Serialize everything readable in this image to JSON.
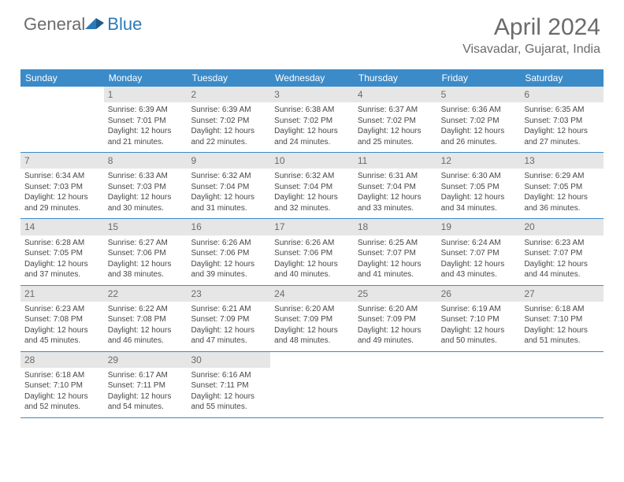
{
  "logo": {
    "general": "General",
    "blue": "Blue"
  },
  "title": "April 2024",
  "location": "Visavadar, Gujarat, India",
  "dayHeaders": [
    "Sunday",
    "Monday",
    "Tuesday",
    "Wednesday",
    "Thursday",
    "Friday",
    "Saturday"
  ],
  "colors": {
    "headerBg": "#3b8bc9",
    "headerText": "#ffffff",
    "dayNumBg": "#e6e6e6",
    "textColor": "#474747",
    "titleColor": "#6b6b6b",
    "logoBlue": "#2a7ab9",
    "rowBorder": "#3b8bc9"
  },
  "weeks": [
    [
      {
        "num": "",
        "sunrise": "",
        "sunset": "",
        "daylight": ""
      },
      {
        "num": "1",
        "sunrise": "Sunrise: 6:39 AM",
        "sunset": "Sunset: 7:01 PM",
        "daylight": "Daylight: 12 hours and 21 minutes."
      },
      {
        "num": "2",
        "sunrise": "Sunrise: 6:39 AM",
        "sunset": "Sunset: 7:02 PM",
        "daylight": "Daylight: 12 hours and 22 minutes."
      },
      {
        "num": "3",
        "sunrise": "Sunrise: 6:38 AM",
        "sunset": "Sunset: 7:02 PM",
        "daylight": "Daylight: 12 hours and 24 minutes."
      },
      {
        "num": "4",
        "sunrise": "Sunrise: 6:37 AM",
        "sunset": "Sunset: 7:02 PM",
        "daylight": "Daylight: 12 hours and 25 minutes."
      },
      {
        "num": "5",
        "sunrise": "Sunrise: 6:36 AM",
        "sunset": "Sunset: 7:02 PM",
        "daylight": "Daylight: 12 hours and 26 minutes."
      },
      {
        "num": "6",
        "sunrise": "Sunrise: 6:35 AM",
        "sunset": "Sunset: 7:03 PM",
        "daylight": "Daylight: 12 hours and 27 minutes."
      }
    ],
    [
      {
        "num": "7",
        "sunrise": "Sunrise: 6:34 AM",
        "sunset": "Sunset: 7:03 PM",
        "daylight": "Daylight: 12 hours and 29 minutes."
      },
      {
        "num": "8",
        "sunrise": "Sunrise: 6:33 AM",
        "sunset": "Sunset: 7:03 PM",
        "daylight": "Daylight: 12 hours and 30 minutes."
      },
      {
        "num": "9",
        "sunrise": "Sunrise: 6:32 AM",
        "sunset": "Sunset: 7:04 PM",
        "daylight": "Daylight: 12 hours and 31 minutes."
      },
      {
        "num": "10",
        "sunrise": "Sunrise: 6:32 AM",
        "sunset": "Sunset: 7:04 PM",
        "daylight": "Daylight: 12 hours and 32 minutes."
      },
      {
        "num": "11",
        "sunrise": "Sunrise: 6:31 AM",
        "sunset": "Sunset: 7:04 PM",
        "daylight": "Daylight: 12 hours and 33 minutes."
      },
      {
        "num": "12",
        "sunrise": "Sunrise: 6:30 AM",
        "sunset": "Sunset: 7:05 PM",
        "daylight": "Daylight: 12 hours and 34 minutes."
      },
      {
        "num": "13",
        "sunrise": "Sunrise: 6:29 AM",
        "sunset": "Sunset: 7:05 PM",
        "daylight": "Daylight: 12 hours and 36 minutes."
      }
    ],
    [
      {
        "num": "14",
        "sunrise": "Sunrise: 6:28 AM",
        "sunset": "Sunset: 7:05 PM",
        "daylight": "Daylight: 12 hours and 37 minutes."
      },
      {
        "num": "15",
        "sunrise": "Sunrise: 6:27 AM",
        "sunset": "Sunset: 7:06 PM",
        "daylight": "Daylight: 12 hours and 38 minutes."
      },
      {
        "num": "16",
        "sunrise": "Sunrise: 6:26 AM",
        "sunset": "Sunset: 7:06 PM",
        "daylight": "Daylight: 12 hours and 39 minutes."
      },
      {
        "num": "17",
        "sunrise": "Sunrise: 6:26 AM",
        "sunset": "Sunset: 7:06 PM",
        "daylight": "Daylight: 12 hours and 40 minutes."
      },
      {
        "num": "18",
        "sunrise": "Sunrise: 6:25 AM",
        "sunset": "Sunset: 7:07 PM",
        "daylight": "Daylight: 12 hours and 41 minutes."
      },
      {
        "num": "19",
        "sunrise": "Sunrise: 6:24 AM",
        "sunset": "Sunset: 7:07 PM",
        "daylight": "Daylight: 12 hours and 43 minutes."
      },
      {
        "num": "20",
        "sunrise": "Sunrise: 6:23 AM",
        "sunset": "Sunset: 7:07 PM",
        "daylight": "Daylight: 12 hours and 44 minutes."
      }
    ],
    [
      {
        "num": "21",
        "sunrise": "Sunrise: 6:23 AM",
        "sunset": "Sunset: 7:08 PM",
        "daylight": "Daylight: 12 hours and 45 minutes."
      },
      {
        "num": "22",
        "sunrise": "Sunrise: 6:22 AM",
        "sunset": "Sunset: 7:08 PM",
        "daylight": "Daylight: 12 hours and 46 minutes."
      },
      {
        "num": "23",
        "sunrise": "Sunrise: 6:21 AM",
        "sunset": "Sunset: 7:09 PM",
        "daylight": "Daylight: 12 hours and 47 minutes."
      },
      {
        "num": "24",
        "sunrise": "Sunrise: 6:20 AM",
        "sunset": "Sunset: 7:09 PM",
        "daylight": "Daylight: 12 hours and 48 minutes."
      },
      {
        "num": "25",
        "sunrise": "Sunrise: 6:20 AM",
        "sunset": "Sunset: 7:09 PM",
        "daylight": "Daylight: 12 hours and 49 minutes."
      },
      {
        "num": "26",
        "sunrise": "Sunrise: 6:19 AM",
        "sunset": "Sunset: 7:10 PM",
        "daylight": "Daylight: 12 hours and 50 minutes."
      },
      {
        "num": "27",
        "sunrise": "Sunrise: 6:18 AM",
        "sunset": "Sunset: 7:10 PM",
        "daylight": "Daylight: 12 hours and 51 minutes."
      }
    ],
    [
      {
        "num": "28",
        "sunrise": "Sunrise: 6:18 AM",
        "sunset": "Sunset: 7:10 PM",
        "daylight": "Daylight: 12 hours and 52 minutes."
      },
      {
        "num": "29",
        "sunrise": "Sunrise: 6:17 AM",
        "sunset": "Sunset: 7:11 PM",
        "daylight": "Daylight: 12 hours and 54 minutes."
      },
      {
        "num": "30",
        "sunrise": "Sunrise: 6:16 AM",
        "sunset": "Sunset: 7:11 PM",
        "daylight": "Daylight: 12 hours and 55 minutes."
      },
      {
        "num": "",
        "sunrise": "",
        "sunset": "",
        "daylight": ""
      },
      {
        "num": "",
        "sunrise": "",
        "sunset": "",
        "daylight": ""
      },
      {
        "num": "",
        "sunrise": "",
        "sunset": "",
        "daylight": ""
      },
      {
        "num": "",
        "sunrise": "",
        "sunset": "",
        "daylight": ""
      }
    ]
  ]
}
